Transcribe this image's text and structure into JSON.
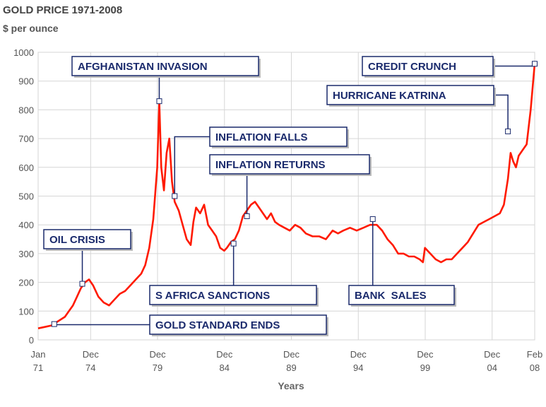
{
  "chart_data": {
    "type": "line",
    "title": "GOLD PRICE 1971-2008",
    "subtitle": "$ per ounce",
    "xlabel": "Years",
    "ylabel": "",
    "ylim": [
      0,
      1000
    ],
    "yticks": [
      "0",
      "100",
      "200",
      "300",
      "400",
      "500",
      "600",
      "700",
      "800",
      "900",
      "1000"
    ],
    "xticks": [
      {
        "line1": "Jan",
        "line2": "71",
        "year": 1971.0
      },
      {
        "line1": "Dec",
        "line2": "74",
        "year": 1974.92
      },
      {
        "line1": "Dec",
        "line2": "79",
        "year": 1979.92
      },
      {
        "line1": "Dec",
        "line2": "84",
        "year": 1984.92
      },
      {
        "line1": "Dec",
        "line2": "89",
        "year": 1989.92
      },
      {
        "line1": "Dec",
        "line2": "94",
        "year": 1994.92
      },
      {
        "line1": "Dec",
        "line2": "99",
        "year": 1999.92
      },
      {
        "line1": "Dec",
        "line2": "04",
        "year": 2004.92
      },
      {
        "line1": "Feb",
        "line2": "08",
        "year": 2008.1
      }
    ],
    "grid": true,
    "line_color": "#ff1a00",
    "series": [
      {
        "x": [
          1971.0,
          1971.5,
          1972.0,
          1972.5,
          1973.0,
          1973.3,
          1973.6,
          1973.9,
          1974.2,
          1974.5,
          1974.8,
          1975.1,
          1975.5,
          1975.9,
          1976.3,
          1976.7,
          1977.1,
          1977.5,
          1977.9,
          1978.3,
          1978.7,
          1979.0,
          1979.3,
          1979.6,
          1979.9,
          1980.05,
          1980.2,
          1980.4,
          1980.6,
          1980.8,
          1981.0,
          1981.2,
          1981.5,
          1981.8,
          1982.1,
          1982.4,
          1982.6,
          1982.8,
          1983.1,
          1983.4,
          1983.7,
          1984.0,
          1984.3,
          1984.6,
          1984.9,
          1985.1,
          1985.4,
          1985.7,
          1986.0,
          1986.3,
          1986.6,
          1986.9,
          1987.2,
          1987.5,
          1987.8,
          1988.1,
          1988.4,
          1988.7,
          1989.0,
          1989.4,
          1989.8,
          1990.2,
          1990.6,
          1991.0,
          1991.5,
          1992.0,
          1992.5,
          1993.0,
          1993.4,
          1993.8,
          1994.3,
          1994.8,
          1995.3,
          1995.8,
          1996.3,
          1996.7,
          1997.1,
          1997.5,
          1997.9,
          1998.3,
          1998.7,
          1999.1,
          1999.5,
          1999.75,
          1999.9,
          2000.3,
          2000.7,
          2001.1,
          2001.5,
          2001.9,
          2002.3,
          2002.7,
          2003.1,
          2003.5,
          2003.9,
          2004.3,
          2004.7,
          2005.1,
          2005.5,
          2005.8,
          2006.1,
          2006.3,
          2006.5,
          2006.7,
          2006.9,
          2007.2,
          2007.5,
          2007.8,
          2008.1
        ],
        "y": [
          40,
          45,
          50,
          65,
          80,
          100,
          120,
          150,
          180,
          200,
          210,
          190,
          150,
          130,
          120,
          140,
          160,
          170,
          190,
          210,
          230,
          260,
          320,
          420,
          600,
          830,
          600,
          520,
          650,
          700,
          550,
          480,
          450,
          400,
          350,
          330,
          410,
          460,
          440,
          470,
          400,
          380,
          360,
          320,
          310,
          320,
          340,
          350,
          380,
          430,
          450,
          470,
          480,
          460,
          440,
          420,
          440,
          410,
          400,
          390,
          380,
          400,
          390,
          370,
          360,
          360,
          350,
          380,
          370,
          380,
          390,
          380,
          390,
          400,
          400,
          380,
          350,
          330,
          300,
          300,
          290,
          290,
          280,
          270,
          320,
          300,
          280,
          270,
          280,
          280,
          300,
          320,
          340,
          370,
          400,
          410,
          420,
          430,
          440,
          470,
          560,
          650,
          620,
          600,
          640,
          660,
          680,
          800,
          960
        ]
      }
    ],
    "annotations": [
      {
        "label": "AFGHANISTAN INVASION",
        "year": 1980.05,
        "value": 830
      },
      {
        "label": "CREDIT CRUNCH",
        "year": 2008.1,
        "value": 960
      },
      {
        "label": "HURRICANE KATRINA",
        "year": 2006.1,
        "value": 725
      },
      {
        "label": "INFLATION FALLS",
        "year": 1981.2,
        "value": 500
      },
      {
        "label": "INFLATION RETURNS",
        "year": 1986.6,
        "value": 430
      },
      {
        "label": "OIL CRISIS",
        "year": 1974.3,
        "value": 195
      },
      {
        "label": "S AFRICA SANCTIONS",
        "year": 1985.6,
        "value": 335
      },
      {
        "label": "BANK  SALES",
        "year": 1996.0,
        "value": 420
      },
      {
        "label": "GOLD STANDARD ENDS",
        "year": 1972.2,
        "value": 55
      }
    ]
  }
}
